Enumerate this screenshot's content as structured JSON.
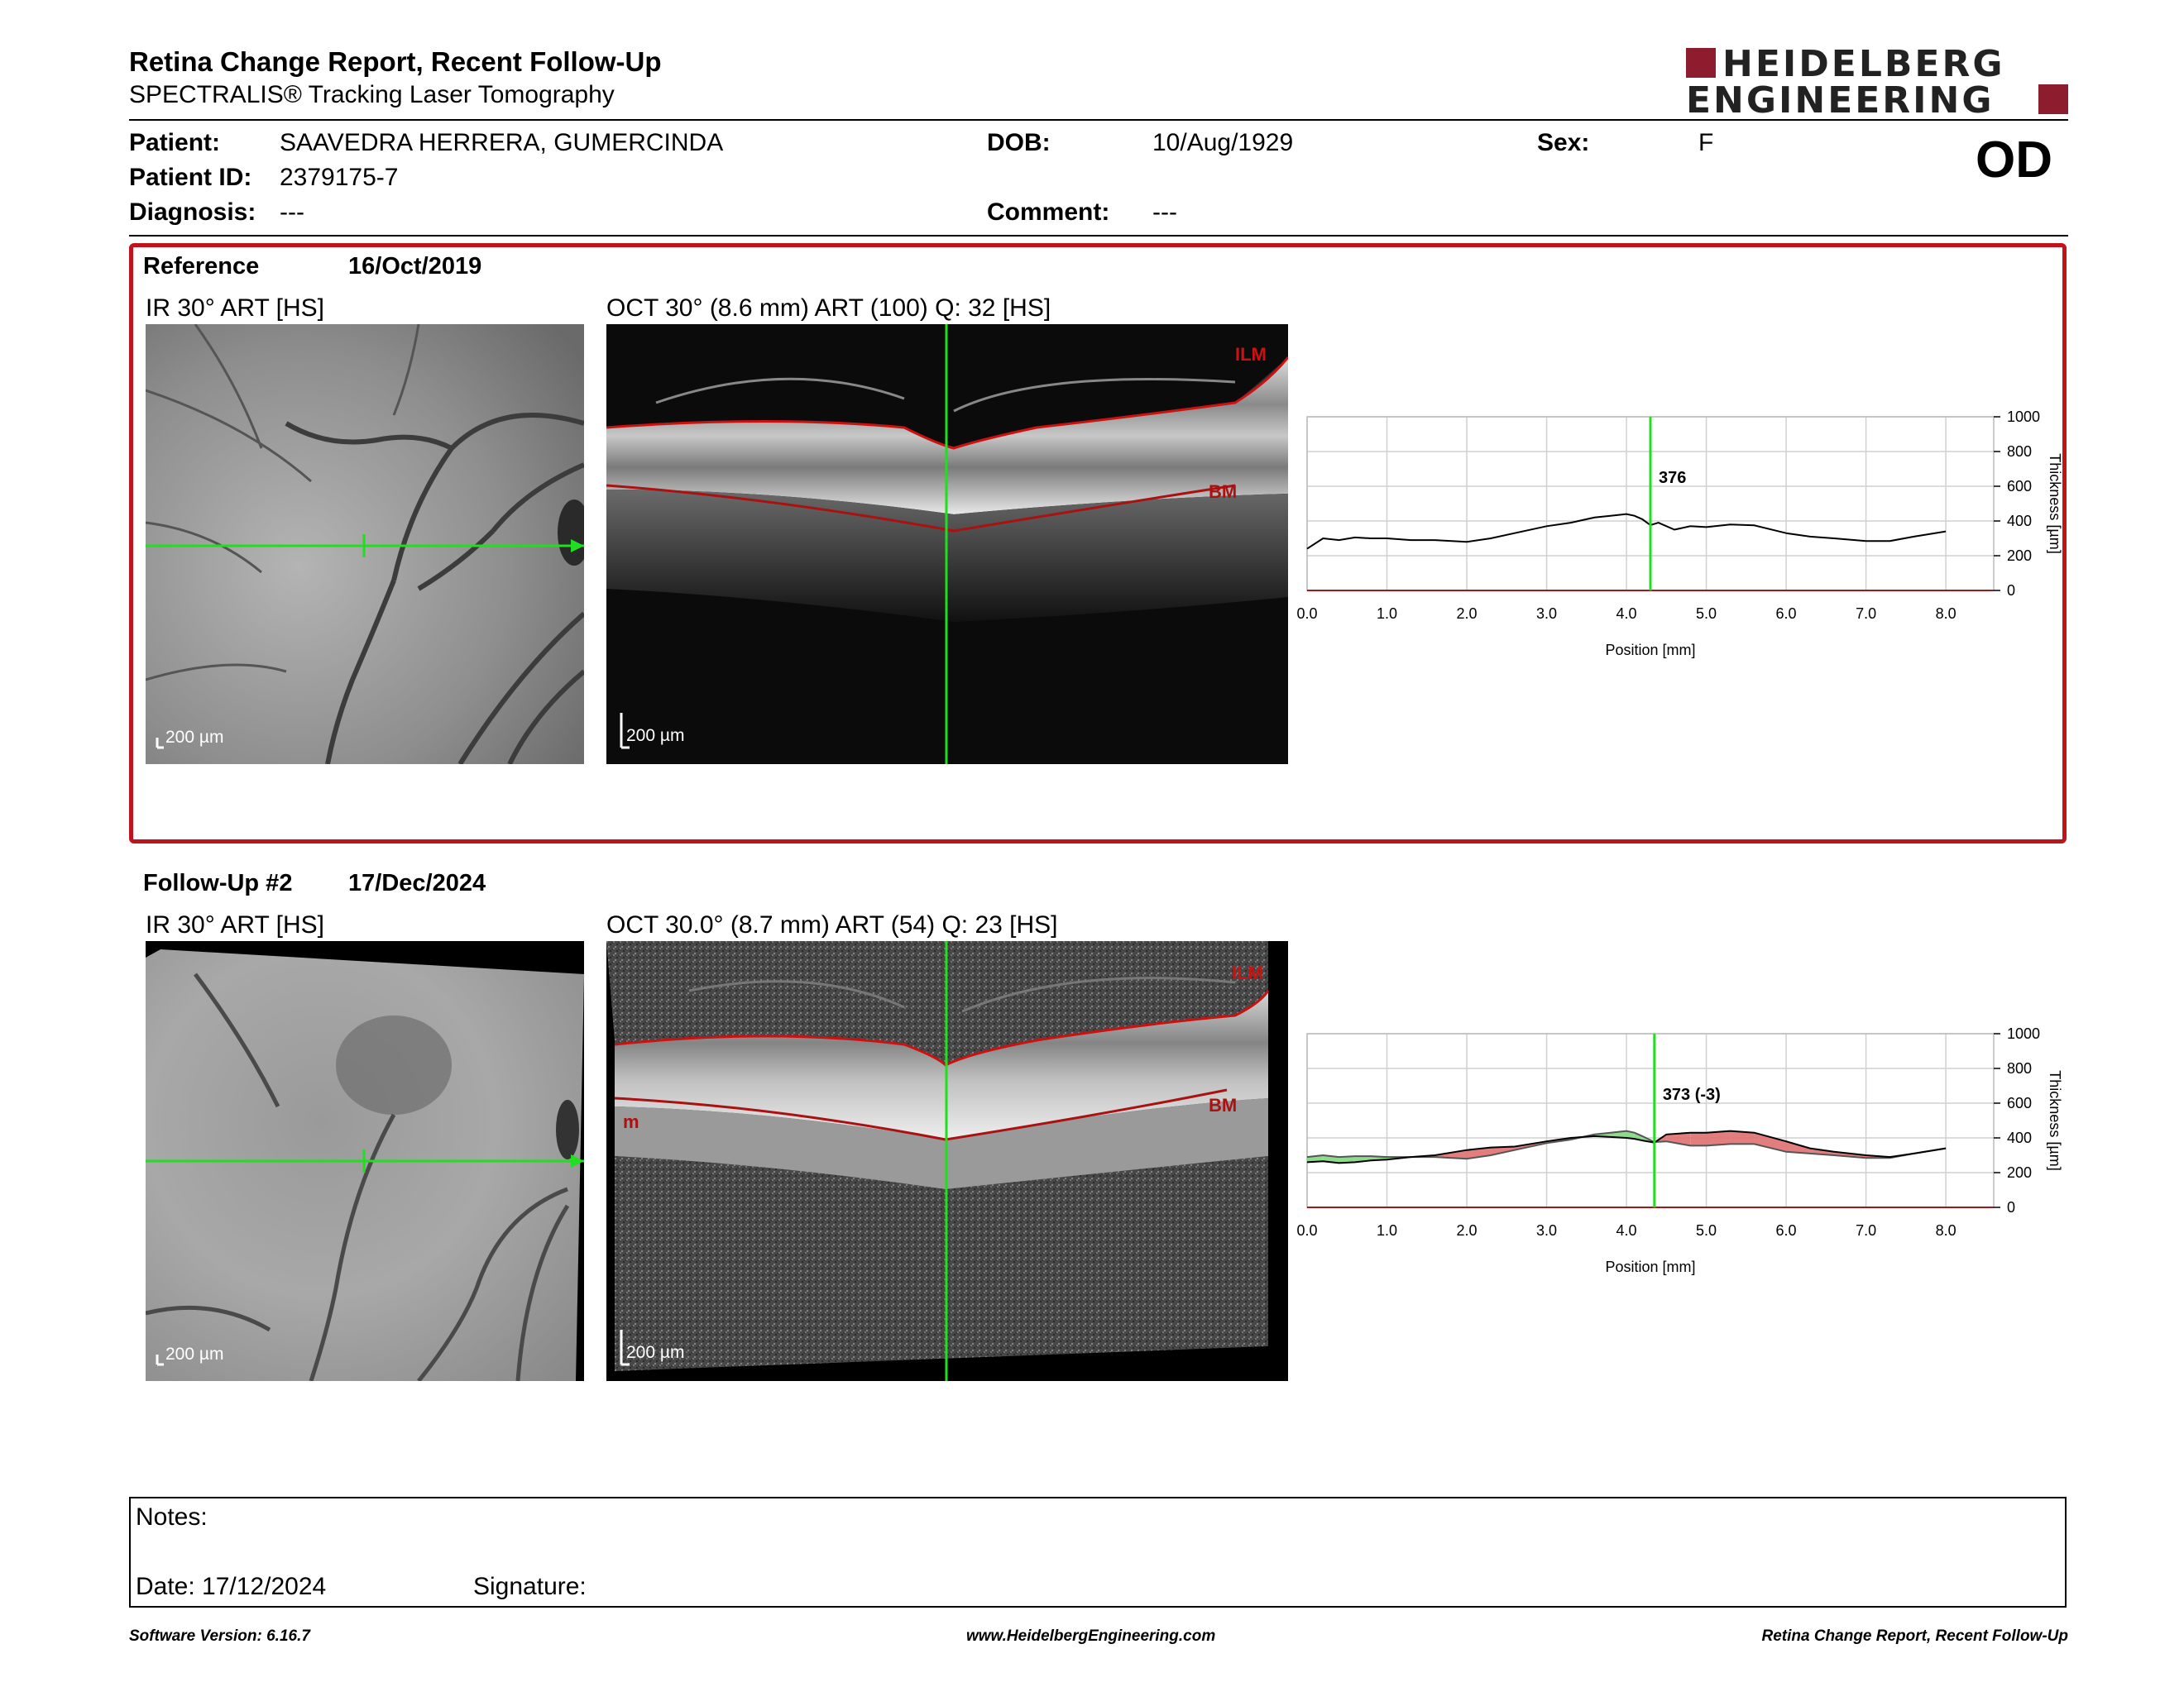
{
  "report": {
    "title": "Retina Change Report, Recent Follow-Up",
    "subtitle": "SPECTRALIS® Tracking Laser Tomography"
  },
  "logo": {
    "line1": "HEIDELBERG",
    "line2": "ENGINEERING",
    "color": "#8c1c2e"
  },
  "patient": {
    "patient_label": "Patient:",
    "patient_name": "SAAVEDRA HERRERA, GUMERCINDA",
    "dob_label": "DOB:",
    "dob": "10/Aug/1929",
    "sex_label": "Sex:",
    "sex": "F",
    "id_label": "Patient ID:",
    "id": "2379175-7",
    "diagnosis_label": "Diagnosis:",
    "diagnosis": "---",
    "comment_label": "Comment:",
    "comment": "---",
    "eye": "OD"
  },
  "reference": {
    "label": "Reference",
    "date": "16/Oct/2019",
    "ir_caption": "IR 30° ART [HS]",
    "oct_caption": "OCT 30° (8.6 mm) ART (100) Q: 32 [HS]",
    "ir_scale": "200 µm",
    "oct_scale": "200 µm",
    "ilm_label": "ILM",
    "bm_label": "BM"
  },
  "followup": {
    "label": "Follow-Up #2",
    "date": "17/Dec/2024",
    "ir_caption": "IR 30° ART [HS]",
    "oct_caption": "OCT 30.0° (8.7 mm) ART (54) Q: 23 [HS]",
    "ir_scale": "200 µm",
    "oct_scale": "200 µm",
    "ilm_label": "ILM",
    "bm_label": "BM",
    "edge_label": "m"
  },
  "notes": {
    "notes_label": "Notes:",
    "date_label": "Date: 17/12/2024",
    "signature_label": "Signature:"
  },
  "footer": {
    "left": "Software Version: 6.16.7",
    "center": "www.HeidelbergEngineering.com",
    "right": "Retina Change Report, Recent Follow-Up"
  },
  "colors": {
    "accent_red": "#c0141d",
    "cursor_green": "#22dd22",
    "increase_fill": "#e07070",
    "decrease_fill": "#80d880"
  },
  "chart_data": [
    {
      "type": "line",
      "xlabel": "Position [mm]",
      "ylabel": "Thickness [µm]",
      "xlim": [
        0,
        8.6
      ],
      "ylim": [
        0,
        1000
      ],
      "x_ticks": [
        "0.0",
        "1.0",
        "2.0",
        "3.0",
        "4.0",
        "5.0",
        "6.0",
        "7.0",
        "8.0"
      ],
      "y_ticks": [
        "0",
        "200",
        "400",
        "600",
        "800",
        "1000"
      ],
      "grid": true,
      "cursor_x": 4.3,
      "cursor_label": "376",
      "series": [
        {
          "x": [
            0.0,
            0.2,
            0.4,
            0.6,
            0.8,
            1.0,
            1.3,
            1.6,
            2.0,
            2.3,
            2.6,
            3.0,
            3.3,
            3.6,
            3.8,
            4.0,
            4.1,
            4.2,
            4.3,
            4.4,
            4.6,
            4.8,
            5.0,
            5.3,
            5.6,
            6.0,
            6.3,
            6.6,
            7.0,
            7.3,
            7.6,
            8.0
          ],
          "values": [
            240,
            300,
            290,
            305,
            300,
            300,
            290,
            290,
            280,
            300,
            330,
            370,
            390,
            420,
            430,
            440,
            430,
            410,
            376,
            390,
            350,
            370,
            365,
            380,
            375,
            330,
            310,
            300,
            285,
            285,
            310,
            340
          ]
        }
      ]
    },
    {
      "type": "line",
      "xlabel": "Position [mm]",
      "ylabel": "Thickness [µm]",
      "xlim": [
        0,
        8.6
      ],
      "ylim": [
        0,
        1000
      ],
      "x_ticks": [
        "0.0",
        "1.0",
        "2.0",
        "3.0",
        "4.0",
        "5.0",
        "6.0",
        "7.0",
        "8.0"
      ],
      "y_ticks": [
        "0",
        "200",
        "400",
        "600",
        "800",
        "1000"
      ],
      "grid": true,
      "cursor_x": 4.35,
      "cursor_label": "373 (-3)",
      "series": [
        {
          "name": "Reference",
          "x": [
            0.0,
            0.2,
            0.4,
            0.6,
            0.8,
            1.0,
            1.3,
            1.6,
            2.0,
            2.3,
            2.6,
            3.0,
            3.3,
            3.6,
            3.8,
            4.0,
            4.1,
            4.2,
            4.35,
            4.5,
            4.8,
            5.0,
            5.3,
            5.6,
            6.0,
            6.3,
            6.6,
            7.0,
            7.3,
            7.6,
            8.0
          ],
          "values": [
            290,
            300,
            290,
            295,
            295,
            290,
            290,
            290,
            280,
            300,
            330,
            370,
            390,
            420,
            430,
            440,
            430,
            410,
            376,
            380,
            355,
            355,
            365,
            365,
            320,
            310,
            300,
            285,
            285,
            310,
            340
          ]
        },
        {
          "name": "Follow-Up",
          "x": [
            0.0,
            0.2,
            0.4,
            0.6,
            0.8,
            1.0,
            1.3,
            1.6,
            2.0,
            2.3,
            2.6,
            3.0,
            3.3,
            3.6,
            3.8,
            4.0,
            4.1,
            4.2,
            4.35,
            4.5,
            4.8,
            5.0,
            5.3,
            5.6,
            6.0,
            6.3,
            6.6,
            7.0,
            7.3,
            7.6,
            8.0
          ],
          "values": [
            260,
            265,
            255,
            260,
            270,
            275,
            290,
            300,
            330,
            345,
            350,
            380,
            400,
            410,
            405,
            400,
            395,
            385,
            373,
            420,
            430,
            430,
            440,
            430,
            380,
            340,
            320,
            300,
            290,
            310,
            340
          ]
        }
      ]
    }
  ]
}
